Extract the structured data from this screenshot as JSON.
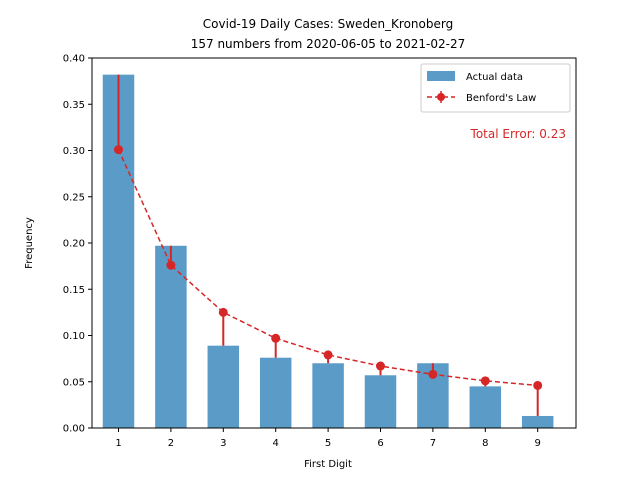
{
  "chart_data": {
    "type": "bar",
    "title": "Covid-19 Daily Cases: Sweden_Kronoberg",
    "subtitle": "157 numbers from 2020-06-05 to 2021-02-27",
    "xlabel": "First Digit",
    "ylabel": "Frequency",
    "categories": [
      "1",
      "2",
      "3",
      "4",
      "5",
      "6",
      "7",
      "8",
      "9"
    ],
    "ylim": [
      0,
      0.4
    ],
    "yticks": [
      "0.00",
      "0.05",
      "0.10",
      "0.15",
      "0.20",
      "0.25",
      "0.30",
      "0.35",
      "0.40"
    ],
    "series": [
      {
        "name": "Actual data",
        "kind": "bar",
        "color": "#5b9bc8",
        "values": [
          0.382,
          0.197,
          0.089,
          0.076,
          0.07,
          0.057,
          0.07,
          0.045,
          0.013
        ]
      },
      {
        "name": "Benford's Law",
        "kind": "line-dashed-markers",
        "color": "#d62728",
        "values": [
          0.301,
          0.176,
          0.125,
          0.097,
          0.079,
          0.067,
          0.058,
          0.051,
          0.046
        ]
      }
    ],
    "legend_position": "top-right",
    "annotation": "Total Error: 0.23",
    "annotation_color": "#d62728",
    "grid": false
  }
}
